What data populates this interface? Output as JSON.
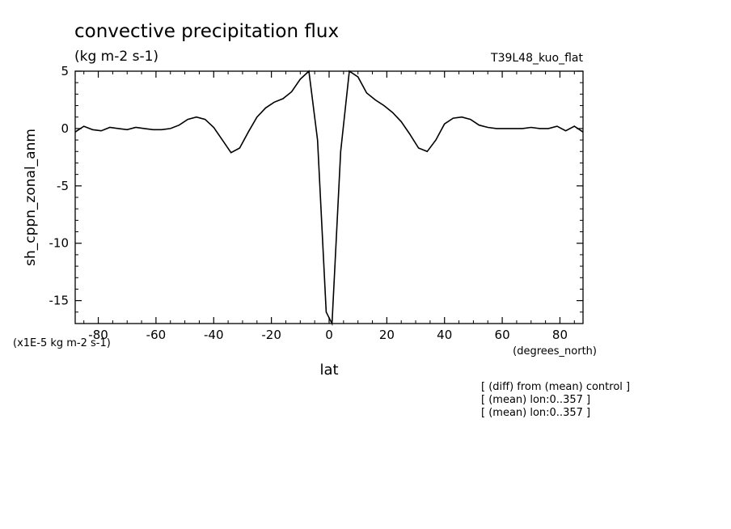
{
  "chart_data": {
    "type": "line",
    "title": "convective precipitation flux",
    "subtitle": "(kg m-2 s-1)",
    "run_label": "T39L48_kuo_flat",
    "ylabel": "sh_cppn_zonal_anm",
    "xlabel": "lat",
    "x_units": "(degrees_north)",
    "y_scale_note": "(x1E-5 kg m-2 s-1)",
    "notes": [
      "[ (diff) from (mean) control ]",
      "[ (mean) lon:0..357 ]",
      "[ (mean) lon:0..357 ]"
    ],
    "xlim": [
      -88,
      88
    ],
    "ylim": [
      -17,
      5
    ],
    "x_ticks": [
      -80,
      -60,
      -40,
      -20,
      0,
      20,
      40,
      60,
      80
    ],
    "x_tick_labels": [
      "-80",
      "-60",
      "-40",
      "-20",
      "0",
      "20",
      "40",
      "60",
      "80"
    ],
    "y_ticks": [
      5,
      0,
      -5,
      -10,
      -15
    ],
    "y_tick_labels": [
      "5",
      "0",
      "-5",
      "-10",
      "-15"
    ],
    "grid": false,
    "line_color": "#000000",
    "series": [
      {
        "x": [
          -88,
          -85,
          -82,
          -79,
          -76,
          -73,
          -70,
          -67,
          -64,
          -61,
          -58,
          -55,
          -52,
          -49,
          -46,
          -43,
          -40,
          -37,
          -34,
          -31,
          -28,
          -25,
          -22,
          -19,
          -16,
          -13,
          -10,
          -7,
          -4,
          -1,
          1,
          4,
          7,
          10,
          13,
          16,
          19,
          22,
          25,
          28,
          31,
          34,
          37,
          40,
          43,
          46,
          49,
          52,
          55,
          58,
          61,
          64,
          67,
          70,
          73,
          76,
          79,
          82,
          85,
          88
        ],
        "y": [
          -0.3,
          0.2,
          -0.1,
          -0.2,
          0.1,
          0.0,
          -0.1,
          0.1,
          0.0,
          -0.1,
          -0.1,
          0.0,
          0.3,
          0.8,
          1.0,
          0.8,
          0.1,
          -1.0,
          -2.1,
          -1.7,
          -0.3,
          1.0,
          1.8,
          2.3,
          2.6,
          3.2,
          4.3,
          5.2,
          -1.0,
          -16.0,
          -17.0,
          -2.0,
          5.1,
          4.5,
          3.1,
          2.5,
          2.0,
          1.4,
          0.6,
          -0.5,
          -1.7,
          -2.0,
          -1.0,
          0.4,
          0.9,
          1.0,
          0.8,
          0.3,
          0.1,
          0.0,
          0.0,
          0.0,
          0.0,
          0.1,
          0.0,
          0.0,
          0.2,
          -0.2,
          0.2,
          -0.3
        ]
      }
    ]
  }
}
